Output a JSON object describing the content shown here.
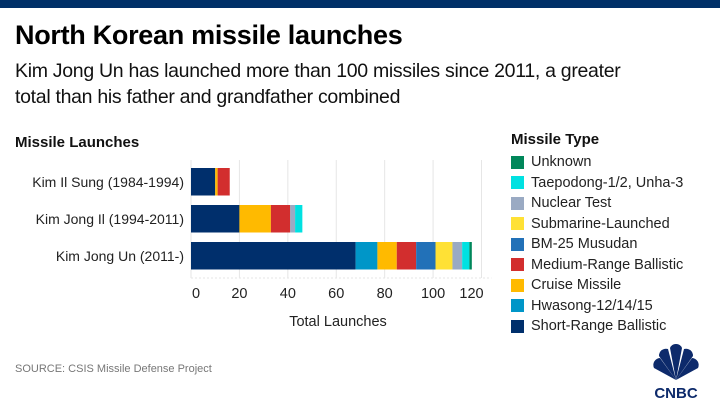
{
  "header": {
    "title": "North Korean missile launches",
    "subtitle": "Kim Jong Un has launched more than 100 missiles since 2011, a greater total than his father and grandfather combined"
  },
  "footer": {
    "source": "SOURCE: CSIS Missile Defense Project",
    "logo_text": "CNBC"
  },
  "colors": {
    "topbar": "#003068",
    "gridline": "#e6e6e6"
  },
  "chart_data": {
    "type": "bar",
    "orientation": "horizontal",
    "stacked": true,
    "title": "Missile Launches",
    "xlabel": "Total Launches",
    "ylabel": "",
    "xlim": [
      0,
      120
    ],
    "xticks": [
      0,
      20,
      40,
      60,
      80,
      100,
      120
    ],
    "grid": true,
    "legend_title": "Missile Type",
    "legend_position": "right",
    "categories": [
      "Kim Il Sung (1984-1994)",
      "Kim Jong Il (1994-2011)",
      "Kim Jong Un (2011-)"
    ],
    "series": [
      {
        "name": "Short-Range Ballistic",
        "color": "#002F6C",
        "values": [
          10,
          20,
          68
        ]
      },
      {
        "name": "Hwasong-12/14/15",
        "color": "#0096C8",
        "values": [
          0,
          0,
          9
        ]
      },
      {
        "name": "Cruise Missile",
        "color": "#FFBA00",
        "values": [
          1,
          13,
          8
        ]
      },
      {
        "name": "Medium-Range Ballistic",
        "color": "#D22E2E",
        "values": [
          5,
          8,
          8
        ]
      },
      {
        "name": "BM-25 Musudan",
        "color": "#2271B8",
        "values": [
          0,
          0,
          8
        ]
      },
      {
        "name": "Submarine-Launched",
        "color": "#FFE135",
        "values": [
          0,
          0,
          7
        ]
      },
      {
        "name": "Nuclear Test",
        "color": "#9AAAC3",
        "values": [
          0,
          2,
          4
        ]
      },
      {
        "name": "Taepodong-1/2, Unha-3",
        "color": "#00E1E1",
        "values": [
          0,
          3,
          3
        ]
      },
      {
        "name": "Unknown",
        "color": "#00875A",
        "values": [
          0,
          0,
          1
        ]
      }
    ],
    "legend_order": [
      "Unknown",
      "Taepodong-1/2, Unha-3",
      "Nuclear Test",
      "Submarine-Launched",
      "BM-25 Musudan",
      "Medium-Range Ballistic",
      "Cruise Missile",
      "Hwasong-12/14/15",
      "Short-Range Ballistic"
    ]
  }
}
